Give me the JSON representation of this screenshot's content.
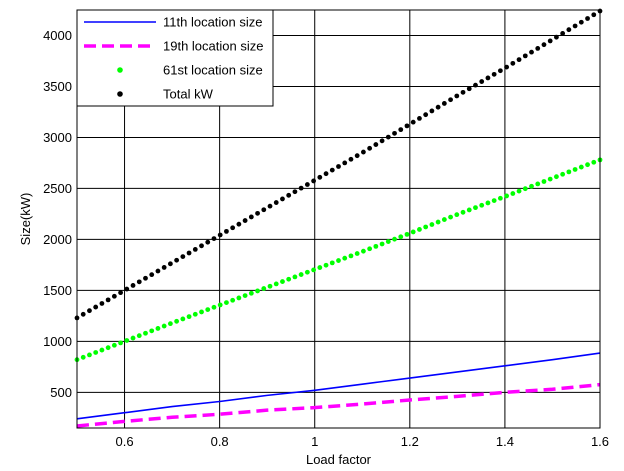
{
  "chart_data": {
    "type": "line",
    "xlabel": "Load factor",
    "ylabel": "Size(kW)",
    "xlim": [
      0.5,
      1.6
    ],
    "ylim": [
      150,
      4250
    ],
    "xticks": [
      0.6,
      0.8,
      1.0,
      1.2,
      1.4,
      1.6
    ],
    "xtick_labels": [
      "0.6",
      "0.8",
      "1",
      "1.2",
      "1.4",
      "1.6"
    ],
    "yticks": [
      500,
      1000,
      1500,
      2000,
      2500,
      3000,
      3500,
      4000
    ],
    "ytick_labels": [
      "500",
      "1000",
      "1500",
      "2000",
      "2500",
      "3000",
      "3500",
      "4000"
    ],
    "grid": true,
    "legend_position": "top-left",
    "x": [
      0.5,
      0.6,
      0.7,
      0.8,
      0.9,
      1.0,
      1.1,
      1.2,
      1.3,
      1.4,
      1.5,
      1.6
    ],
    "series": [
      {
        "name": "11th location size",
        "color": "#0000ff",
        "style": "solid",
        "values": [
          240,
          300,
          360,
          410,
          470,
          520,
          580,
          640,
          700,
          760,
          820,
          885
        ]
      },
      {
        "name": "19th location size",
        "color": "#ff00ff",
        "style": "dashed",
        "values": [
          170,
          215,
          255,
          285,
          325,
          350,
          385,
          425,
          460,
          500,
          530,
          575
        ]
      },
      {
        "name": "61st location size",
        "color": "#00ff00",
        "style": "dots",
        "values": [
          820,
          1000,
          1180,
          1355,
          1530,
          1705,
          1880,
          2060,
          2245,
          2420,
          2600,
          2780
        ]
      },
      {
        "name": "Total kW",
        "color": "#000000",
        "style": "dots",
        "values": [
          1230,
          1500,
          1770,
          2040,
          2310,
          2580,
          2850,
          3130,
          3410,
          3680,
          3960,
          4240
        ]
      }
    ]
  }
}
